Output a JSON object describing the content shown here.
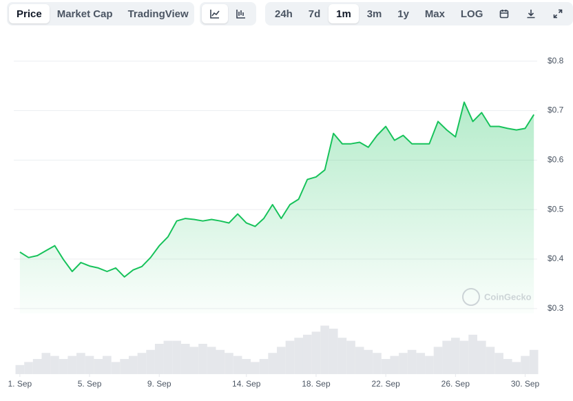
{
  "toolbar": {
    "tabs": [
      "Price",
      "Market Cap",
      "TradingView"
    ],
    "ranges": [
      "24h",
      "7d",
      "1m",
      "3m",
      "1y",
      "Max",
      "LOG"
    ]
  },
  "chart_data": {
    "type": "line",
    "watermark": "CoinGecko",
    "x": [
      1,
      1.5,
      2,
      2.5,
      3,
      3.5,
      4,
      4.5,
      5,
      5.5,
      6,
      6.5,
      7,
      7.5,
      8,
      8.5,
      9,
      9.5,
      10,
      10.5,
      11,
      11.5,
      12,
      12.5,
      13,
      13.5,
      14,
      14.5,
      15,
      15.5,
      16,
      16.5,
      17,
      17.5,
      18,
      18.5,
      19,
      19.5,
      20,
      20.5,
      21,
      21.5,
      22,
      22.5,
      23,
      23.5,
      24,
      24.5,
      25,
      25.5,
      26,
      26.5,
      27,
      27.5,
      28,
      28.5,
      29,
      29.5,
      30,
      30.5
    ],
    "series": [
      {
        "name": "Price",
        "color": "#16c25a",
        "values": [
          0.414,
          0.403,
          0.407,
          0.417,
          0.427,
          0.399,
          0.375,
          0.393,
          0.386,
          0.382,
          0.375,
          0.382,
          0.364,
          0.378,
          0.385,
          0.403,
          0.427,
          0.445,
          0.477,
          0.482,
          0.48,
          0.477,
          0.48,
          0.477,
          0.473,
          0.491,
          0.473,
          0.466,
          0.482,
          0.51,
          0.482,
          0.51,
          0.521,
          0.561,
          0.566,
          0.58,
          0.654,
          0.633,
          0.633,
          0.636,
          0.626,
          0.65,
          0.668,
          0.64,
          0.65,
          0.633,
          0.633,
          0.633,
          0.678,
          0.661,
          0.647,
          0.717,
          0.678,
          0.696,
          0.668,
          0.668,
          0.664,
          0.661,
          0.664,
          0.692
        ]
      }
    ],
    "volume": {
      "color": "#e5e7eb",
      "ylim": [
        0,
        100
      ],
      "values": [
        15,
        20,
        25,
        35,
        30,
        25,
        30,
        35,
        30,
        25,
        30,
        20,
        25,
        30,
        35,
        40,
        50,
        55,
        55,
        50,
        45,
        50,
        45,
        40,
        35,
        30,
        25,
        20,
        25,
        35,
        45,
        55,
        60,
        65,
        70,
        80,
        75,
        60,
        55,
        45,
        40,
        35,
        25,
        30,
        35,
        40,
        35,
        30,
        45,
        55,
        60,
        55,
        65,
        55,
        45,
        35,
        25,
        20,
        30,
        40
      ]
    },
    "xlim": [
      0.65,
      30.69
    ],
    "xticks": [
      {
        "value": 1,
        "label": "1. Sep"
      },
      {
        "value": 5,
        "label": "5. Sep"
      },
      {
        "value": 9,
        "label": "9. Sep"
      },
      {
        "value": 14,
        "label": "14. Sep"
      },
      {
        "value": 18,
        "label": "18. Sep"
      },
      {
        "value": 22,
        "label": "22. Sep"
      },
      {
        "value": 26,
        "label": "26. Sep"
      },
      {
        "value": 30,
        "label": "30. Sep"
      }
    ],
    "ylim": [
      0.29,
      0.84
    ],
    "yticks": [
      {
        "value": 0.3,
        "label": "$0.3"
      },
      {
        "value": 0.4,
        "label": "$0.4"
      },
      {
        "value": 0.5,
        "label": "$0.5"
      },
      {
        "value": 0.6,
        "label": "$0.6"
      },
      {
        "value": 0.7,
        "label": "$0.7"
      },
      {
        "value": 0.8,
        "label": "$0.8"
      }
    ],
    "grid": true
  }
}
